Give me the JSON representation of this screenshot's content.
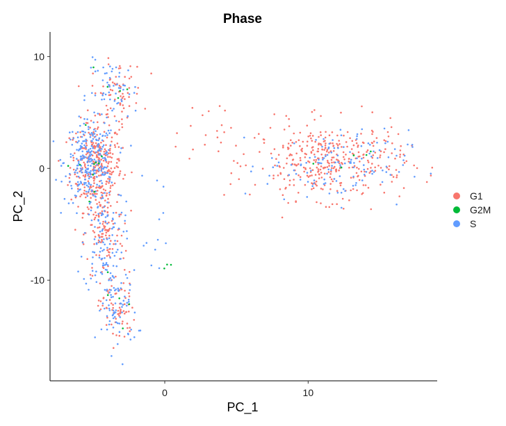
{
  "chart_data": {
    "type": "scatter",
    "title": "Phase",
    "xlabel": "PC_1",
    "ylabel": "PC_2",
    "xlim": [
      -8,
      19
    ],
    "ylim": [
      -19,
      12.2
    ],
    "x_ticks": [
      0,
      10
    ],
    "y_ticks": [
      10,
      0,
      -10
    ],
    "grid": false,
    "legend_position": "right",
    "series": [
      {
        "name": "G1",
        "color": "#F8766D"
      },
      {
        "name": "G2M",
        "color": "#00BA38"
      },
      {
        "name": "S",
        "color": "#619CFF"
      }
    ],
    "point_groups": [
      {
        "series": "G1",
        "count": 320,
        "center": [
          -4.8,
          0.2
        ],
        "spread": [
          0.9,
          2.0
        ]
      },
      {
        "series": "S",
        "count": 260,
        "center": [
          -5.2,
          0.6
        ],
        "spread": [
          0.9,
          1.8
        ]
      },
      {
        "series": "G1",
        "count": 110,
        "center": [
          -4.2,
          -6.0
        ],
        "spread": [
          0.7,
          2.2
        ]
      },
      {
        "series": "S",
        "count": 110,
        "center": [
          -4.3,
          -6.5
        ],
        "spread": [
          0.7,
          2.3
        ]
      },
      {
        "series": "G1",
        "count": 70,
        "center": [
          -3.3,
          -12.5
        ],
        "spread": [
          0.6,
          1.6
        ]
      },
      {
        "series": "S",
        "count": 70,
        "center": [
          -3.3,
          -12.8
        ],
        "spread": [
          0.7,
          1.8
        ]
      },
      {
        "series": "G1",
        "count": 70,
        "center": [
          -3.3,
          6.8
        ],
        "spread": [
          0.9,
          1.4
        ]
      },
      {
        "series": "S",
        "count": 55,
        "center": [
          -3.6,
          6.8
        ],
        "spread": [
          0.9,
          1.4
        ]
      },
      {
        "series": "G1",
        "count": 380,
        "center": [
          11.5,
          0.6
        ],
        "spread": [
          2.6,
          1.7
        ]
      },
      {
        "series": "S",
        "count": 130,
        "center": [
          12.0,
          0.2
        ],
        "spread": [
          2.5,
          1.6
        ]
      },
      {
        "series": "G1",
        "count": 20,
        "center": [
          2.8,
          3.2
        ],
        "spread": [
          1.8,
          1.4
        ]
      },
      {
        "series": "S",
        "count": 14,
        "center": [
          -0.8,
          -4.5
        ],
        "spread": [
          1.0,
          4.5
        ]
      },
      {
        "series": "G2M",
        "count": 10,
        "center": [
          -4.8,
          0.5
        ],
        "spread": [
          0.8,
          1.6
        ]
      },
      {
        "series": "G2M",
        "count": 5,
        "center": [
          -3.5,
          7.2
        ],
        "spread": [
          0.6,
          1.0
        ]
      },
      {
        "series": "G2M",
        "count": 5,
        "center": [
          -3.6,
          -11.5
        ],
        "spread": [
          0.5,
          1.5
        ]
      },
      {
        "series": "G2M",
        "count": 5,
        "center": [
          12.5,
          1.5
        ],
        "spread": [
          1.5,
          0.8
        ]
      },
      {
        "series": "G2M",
        "count": 3,
        "center": [
          0.3,
          -8.5
        ],
        "spread": [
          0.1,
          0.3
        ]
      }
    ]
  }
}
